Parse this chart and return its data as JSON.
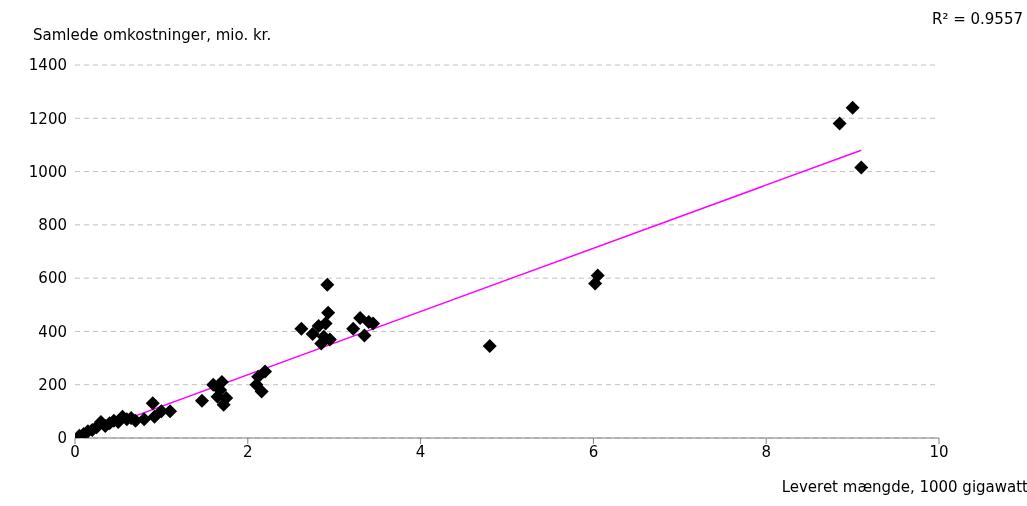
{
  "chart_data": {
    "type": "scatter",
    "xlabel": "Leveret mængde, 1000 gigawatt",
    "ylabel": "Samlede omkostninger, mio. kr.",
    "annotations": [
      "R² = 0.9557"
    ],
    "grid": "y",
    "xlim": [
      0,
      10
    ],
    "xticks": [
      0,
      2,
      4,
      6,
      8,
      10
    ],
    "ylim": [
      0,
      1400
    ],
    "yticks": [
      0,
      200,
      400,
      600,
      800,
      1000,
      1200,
      1400
    ],
    "series": [
      {
        "color": "#000000",
        "marker": "diamond",
        "x": [
          0.05,
          0.1,
          0.15,
          0.2,
          0.25,
          0.3,
          0.35,
          0.4,
          0.45,
          0.5,
          0.55,
          0.6,
          0.65,
          0.7,
          0.8,
          0.9,
          0.92,
          1.0,
          1.1,
          1.47,
          1.6,
          1.65,
          1.68,
          1.7,
          1.72,
          1.75,
          2.1,
          2.12,
          2.16,
          2.2,
          2.62,
          2.75,
          2.82,
          2.85,
          2.88,
          2.9,
          2.92,
          2.93,
          2.95,
          3.22,
          3.3,
          3.35,
          3.4,
          3.45,
          4.8,
          6.02,
          6.05,
          8.85,
          9.0,
          9.1
        ],
        "values": [
          8,
          15,
          25,
          30,
          40,
          60,
          45,
          55,
          65,
          60,
          80,
          70,
          75,
          65,
          70,
          130,
          80,
          100,
          100,
          140,
          200,
          155,
          180,
          210,
          125,
          150,
          200,
          230,
          175,
          250,
          410,
          390,
          420,
          355,
          380,
          430,
          575,
          470,
          370,
          410,
          450,
          385,
          435,
          430,
          345,
          580,
          610,
          1180,
          1240,
          1015
        ]
      },
      {
        "type": "line",
        "color": "#ff00ff",
        "x": [
          0,
          9.1
        ],
        "values": [
          0,
          1080
        ]
      }
    ]
  }
}
